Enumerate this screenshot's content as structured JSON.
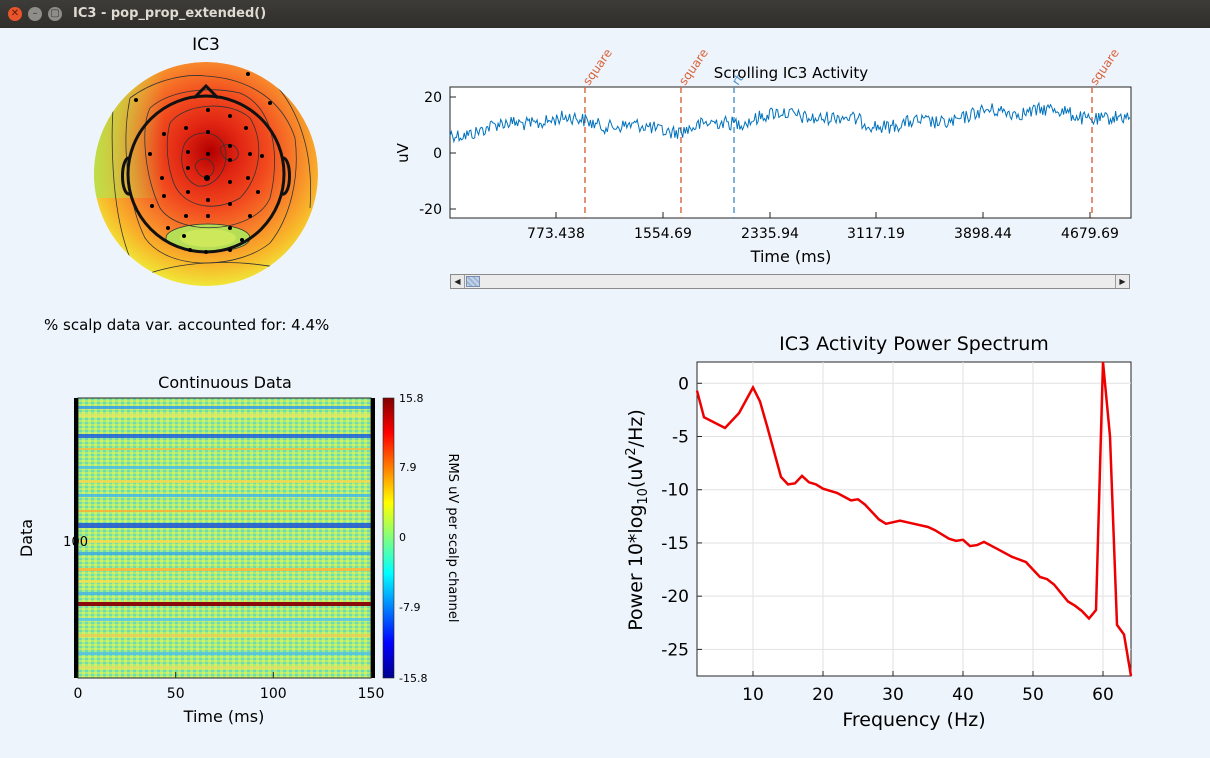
{
  "window": {
    "title": "IC3 - pop_prop_extended()"
  },
  "topo": {
    "title": "IC3"
  },
  "variance_text": "% scalp data var. accounted for: 4.4%",
  "scroll_plot": {
    "title": "Scrolling IC3 Activity",
    "xlabel": "Time (ms)",
    "ylabel": "uV",
    "xticks": [
      "773.438",
      "1554.69",
      "2335.94",
      "3117.19",
      "3898.44",
      "4679.69"
    ],
    "yticks": [
      "20",
      "0",
      "-20"
    ],
    "events": [
      "square",
      "square",
      "rt",
      "square"
    ]
  },
  "erpimage": {
    "title": "Continuous Data",
    "xlabel": "Time (ms)",
    "ylabel": "Data",
    "xticks": [
      "0",
      "50",
      "100",
      "150"
    ],
    "yticks": [
      "100"
    ],
    "colorbar_ticks": [
      "15.8",
      "7.9",
      "0",
      "-7.9",
      "-15.8"
    ],
    "colorbar_label": "RMS uV per scalp channel"
  },
  "chart_data": {
    "type": "line",
    "title": "IC3 Activity Power Spectrum",
    "xlabel": "Frequency (Hz)",
    "ylabel": "Power 10*log10(uV2/Hz)",
    "xlim": [
      2,
      64
    ],
    "ylim": [
      -27.5,
      2
    ],
    "xticks": [
      10,
      20,
      30,
      40,
      50,
      60
    ],
    "yticks": [
      0,
      -5,
      -10,
      -15,
      -20,
      -25
    ],
    "grid": true,
    "series": [
      {
        "color": "#ee0000",
        "x": [
          2,
          3,
          6,
          8,
          10,
          11,
          12,
          14,
          15,
          16,
          17,
          18,
          19,
          20,
          22,
          24,
          25,
          26,
          28,
          29,
          31,
          33,
          35,
          36,
          38,
          39,
          40,
          41,
          42,
          43,
          45,
          47,
          49,
          50,
          51,
          52,
          53,
          55,
          56,
          57,
          58,
          59,
          60,
          61,
          62,
          63,
          64
        ],
        "y": [
          -0.7,
          -3.2,
          -4.2,
          -2.8,
          -0.4,
          -1.7,
          -4.0,
          -8.8,
          -9.5,
          -9.4,
          -8.7,
          -9.3,
          -9.5,
          -9.9,
          -10.3,
          -11.0,
          -10.9,
          -11.4,
          -12.8,
          -13.2,
          -12.9,
          -13.2,
          -13.5,
          -13.8,
          -14.6,
          -14.8,
          -14.7,
          -15.3,
          -15.2,
          -14.9,
          -15.6,
          -16.3,
          -16.8,
          -17.5,
          -18.2,
          -18.4,
          -18.9,
          -20.5,
          -20.9,
          -21.4,
          -22.1,
          -21.3,
          2.0,
          -5.0,
          -22.7,
          -23.6,
          -27.5
        ]
      }
    ]
  }
}
